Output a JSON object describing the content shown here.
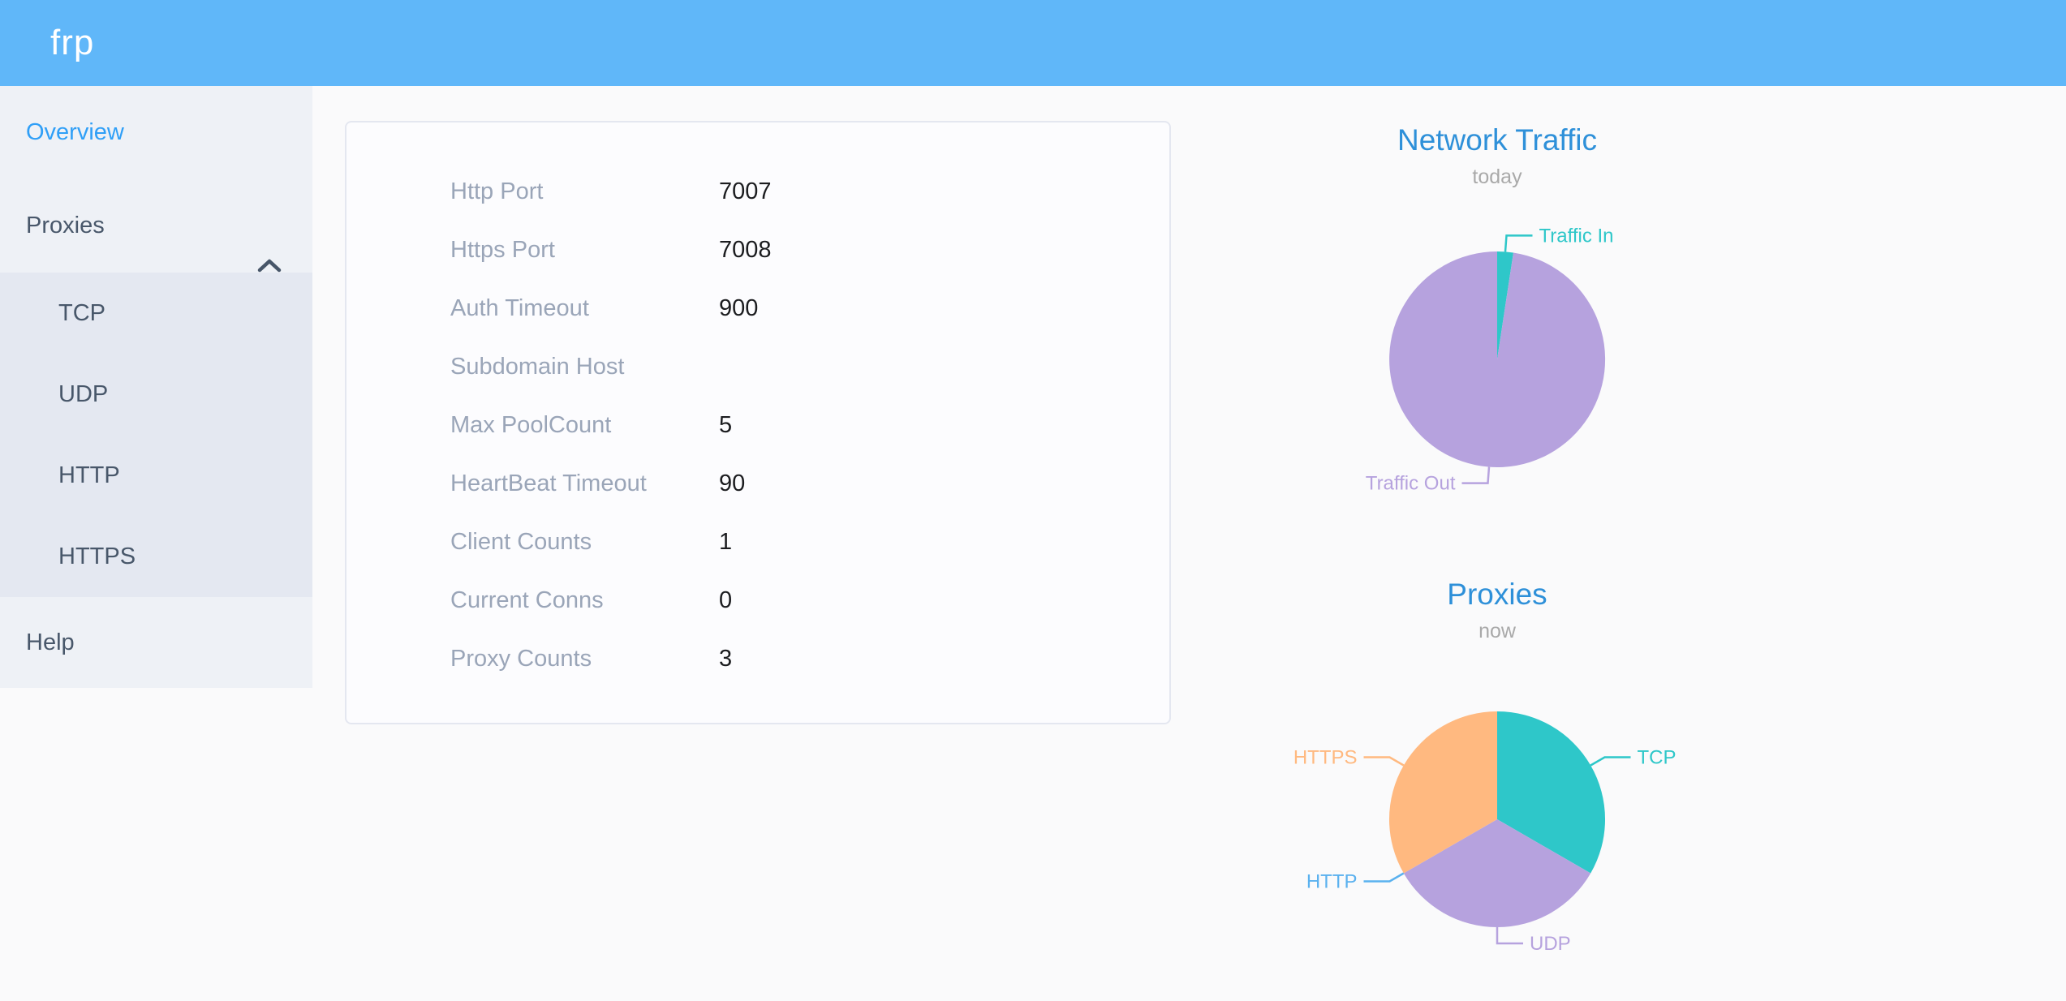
{
  "header": {
    "logo": "frp"
  },
  "sidebar": {
    "items": [
      {
        "label": "Overview",
        "active": true
      },
      {
        "label": "Proxies",
        "expanded": true,
        "children": [
          "TCP",
          "UDP",
          "HTTP",
          "HTTPS"
        ]
      },
      {
        "label": "Help",
        "active": false
      }
    ]
  },
  "server_info": {
    "rows": [
      {
        "label": "Http Port",
        "value": "7007"
      },
      {
        "label": "Https Port",
        "value": "7008"
      },
      {
        "label": "Auth Timeout",
        "value": "900"
      },
      {
        "label": "Subdomain Host",
        "value": ""
      },
      {
        "label": "Max PoolCount",
        "value": "5"
      },
      {
        "label": "HeartBeat Timeout",
        "value": "90"
      },
      {
        "label": "Client Counts",
        "value": "1"
      },
      {
        "label": "Current Conns",
        "value": "0"
      },
      {
        "label": "Proxy Counts",
        "value": "3"
      }
    ]
  },
  "chart_data": [
    {
      "type": "pie",
      "title": "Network Traffic",
      "subtitle": "today",
      "legend_position": "outside-labels",
      "start_angle_deg": 0,
      "series": [
        {
          "name": "Traffic In",
          "value": 2.4,
          "unit": "percent",
          "color": "#2ec7c9"
        },
        {
          "name": "Traffic Out",
          "value": 97.6,
          "unit": "percent",
          "color": "#b6a2de"
        }
      ]
    },
    {
      "type": "pie",
      "title": "Proxies",
      "subtitle": "now",
      "legend_position": "outside-labels",
      "start_angle_deg": 0,
      "series": [
        {
          "name": "TCP",
          "value": 1,
          "unit": "count",
          "color": "#2ec7c9"
        },
        {
          "name": "UDP",
          "value": 1,
          "unit": "count",
          "color": "#b6a2de"
        },
        {
          "name": "HTTP",
          "value": 0,
          "unit": "count",
          "color": "#5ab1ef"
        },
        {
          "name": "HTTPS",
          "value": 1,
          "unit": "count",
          "color": "#ffb980"
        }
      ]
    }
  ],
  "colors": {
    "header_bg": "#60b7f9",
    "sidebar_bg": "#eef1f6",
    "submenu_bg": "#e4e8f1",
    "menu_text": "#48576a",
    "menu_active": "#2f9ff7",
    "page_bg": "#fafafb",
    "card_border": "#e4e7f0",
    "info_label": "#9aa5b8",
    "info_value": "#1b1c1f",
    "chart_title": "#2e90d9",
    "chart_subtitle": "#a9a9a9",
    "pie_palette": [
      "#2ec7c9",
      "#b6a2de",
      "#5ab1ef",
      "#ffb980"
    ]
  }
}
